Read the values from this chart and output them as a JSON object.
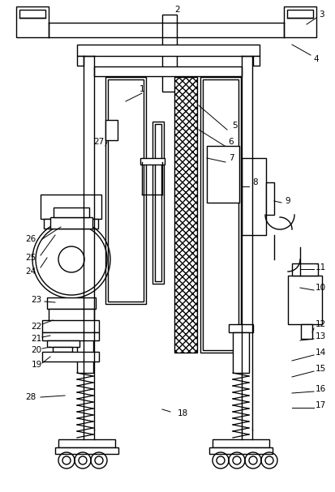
{
  "bg": "#ffffff",
  "lc": "#000000",
  "lw": 1.0,
  "fig_w": 4.14,
  "fig_h": 6.07,
  "dpi": 100
}
